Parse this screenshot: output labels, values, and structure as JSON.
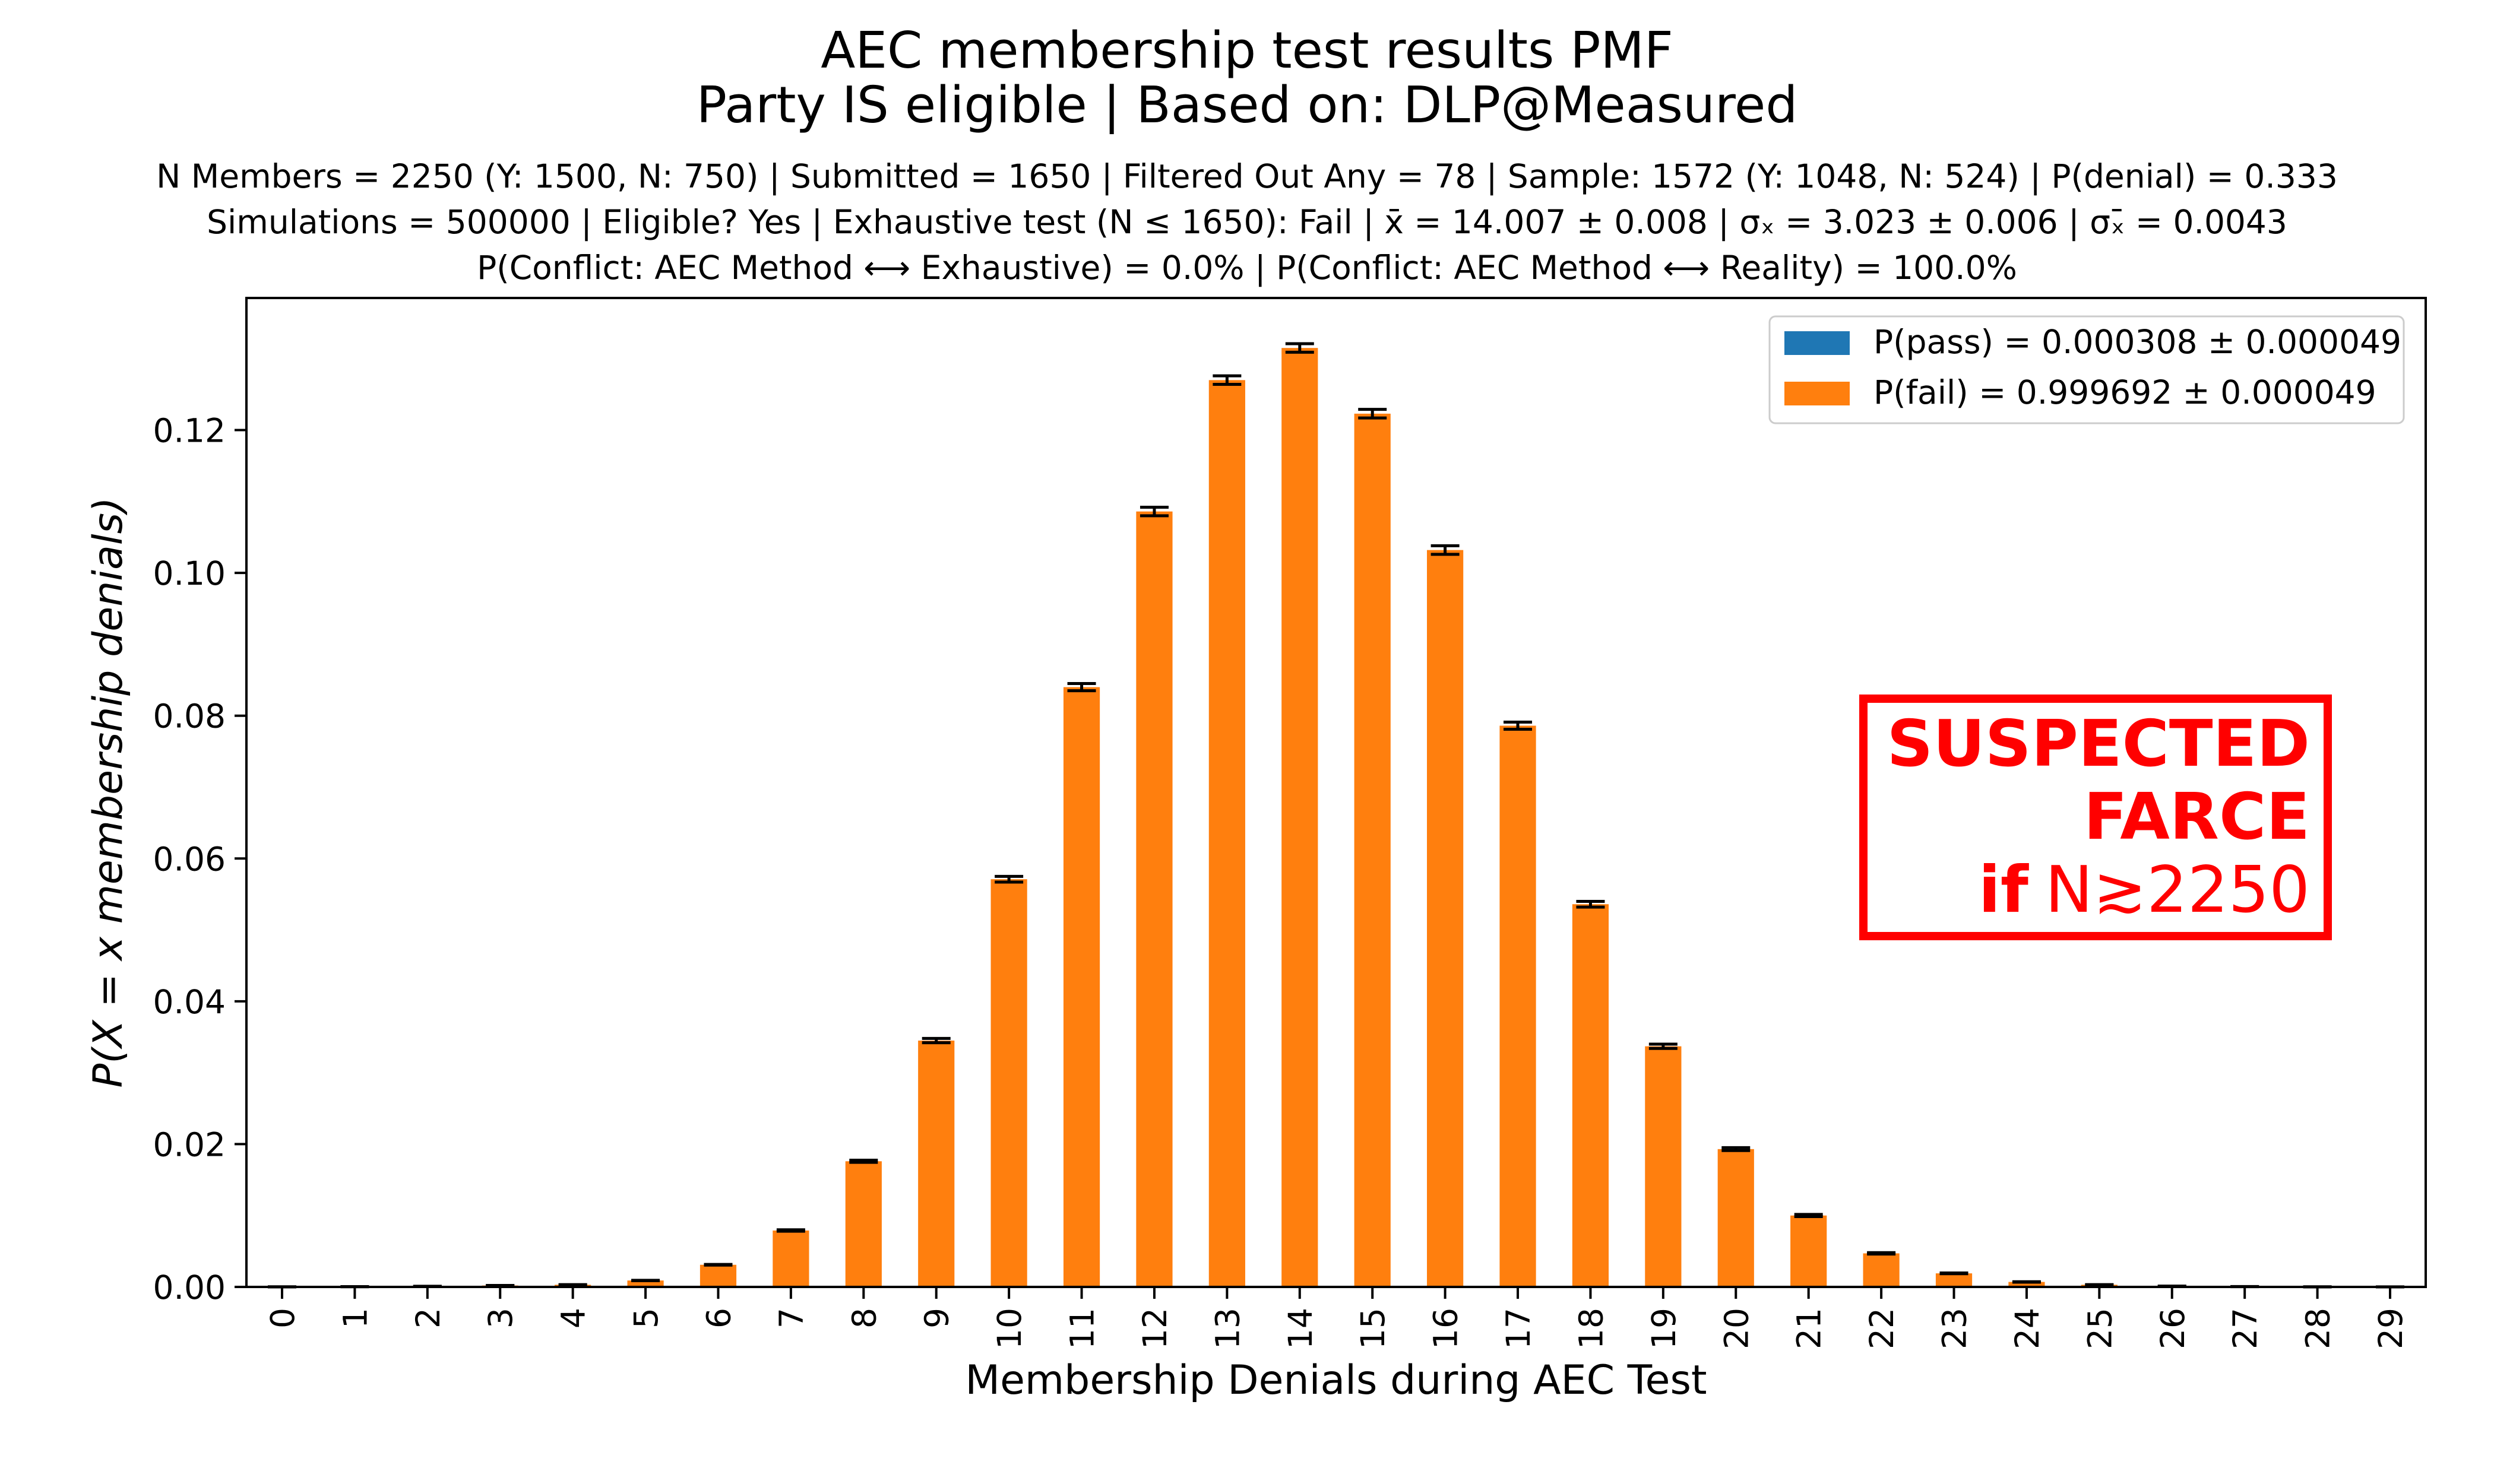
{
  "chart_data": {
    "type": "bar",
    "title": "AEC membership test results PMF",
    "subtitle": "Party IS eligible | Based on: DLP@Measured",
    "info_line_1": "N Members = 2250 (Y: 1500, N: 750) | Submitted = 1650 | Filtered Out Any = 78 | Sample: 1572 (Y: 1048, N: 524) | P(denial) = 0.333",
    "info_line_2": "Simulations = 500000 | Eligible? Yes | Exhaustive test (N ≤ 1650): Fail | x̄ = 14.007 ± 0.008 | σₓ = 3.023 ± 0.006 | σₓ̄ = 0.0043",
    "info_line_3": "P(Conflict: AEC Method ⟷ Exhaustive) = 0.0% | P(Conflict: AEC Method ⟷ Reality) = 100.0%",
    "xlabel": "Membership Denials during AEC Test",
    "ylabel": "P(X = x membership denials)",
    "ylim": [
      0,
      0.1385
    ],
    "yticks": [
      0.0,
      0.02,
      0.04,
      0.06,
      0.08,
      0.1,
      0.12
    ],
    "ytick_labels": [
      "0.00",
      "0.02",
      "0.04",
      "0.06",
      "0.08",
      "0.10",
      "0.12"
    ],
    "categories": [
      "0",
      "1",
      "2",
      "3",
      "4",
      "5",
      "6",
      "7",
      "8",
      "9",
      "10",
      "11",
      "12",
      "13",
      "14",
      "15",
      "16",
      "17",
      "18",
      "19",
      "20",
      "21",
      "22",
      "23",
      "24",
      "25",
      "26",
      "27",
      "28",
      "29"
    ],
    "series": [
      {
        "name": "P(pass) = 0.000308 ± 0.000049",
        "color": "#1f77b4",
        "values": [
          0,
          0,
          0,
          0,
          0,
          0,
          0,
          0,
          0,
          0,
          0,
          0,
          0,
          0,
          0,
          0,
          0,
          0,
          0,
          0,
          0,
          0,
          0,
          0,
          0,
          0,
          0,
          0,
          0,
          0
        ]
      },
      {
        "name": "P(fail) = 0.999692 ± 0.000049",
        "color": "#ff7f0e",
        "values": [
          1e-05,
          3e-05,
          8e-05,
          0.0002,
          0.0003,
          0.0009,
          0.0031,
          0.0079,
          0.0176,
          0.0345,
          0.0571,
          0.084,
          0.1086,
          0.127,
          0.1315,
          0.1223,
          0.1032,
          0.0786,
          0.0536,
          0.0337,
          0.0193,
          0.01,
          0.0047,
          0.0019,
          0.0007,
          0.0003,
          0.0001,
          4e-05,
          1e-05,
          5e-06
        ],
        "errors": [
          1e-05,
          1e-05,
          1e-05,
          1e-05,
          2e-05,
          3e-05,
          5e-05,
          0.0001,
          0.00015,
          0.0003,
          0.0004,
          0.0005,
          0.0006,
          0.0006,
          0.0006,
          0.0006,
          0.0006,
          0.0005,
          0.0004,
          0.0003,
          0.0002,
          0.00015,
          0.0001,
          5e-05,
          3e-05,
          2e-05,
          1e-05,
          1e-05,
          1e-05,
          1e-05
        ]
      }
    ],
    "legend_placement": "top-right",
    "grid": false,
    "annotation": {
      "line1": "SUSPECTED",
      "line2": "FARCE",
      "line3_bold": "if",
      "line3_rest": "N≳2250",
      "color": "#ff0000"
    }
  }
}
